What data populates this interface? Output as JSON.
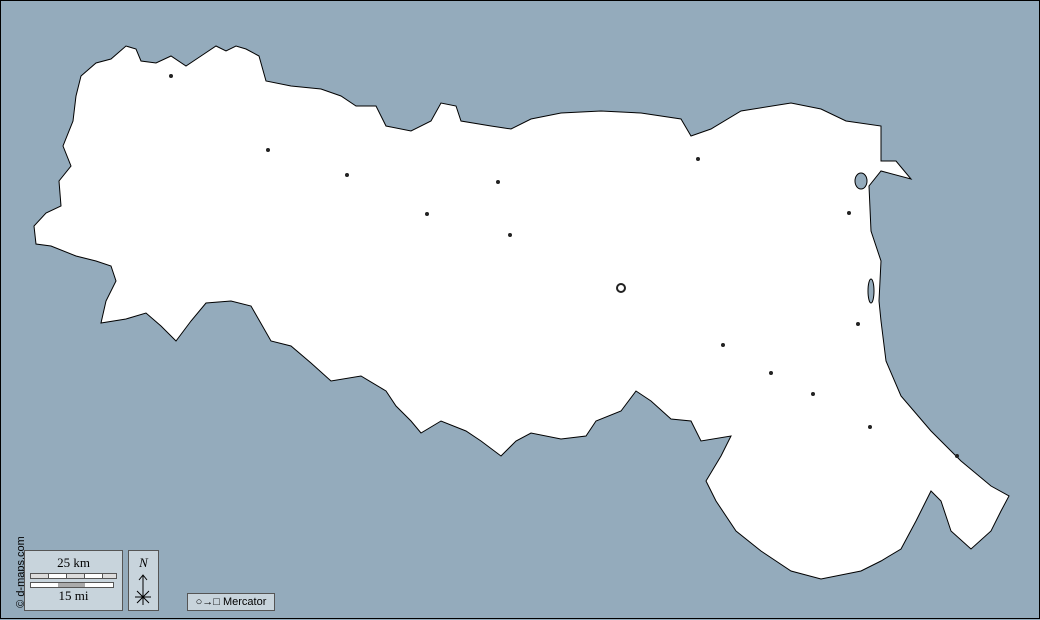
{
  "credit": "© d-maps.com",
  "scale": {
    "km_label": "25 km",
    "mi_label": "15 mi"
  },
  "north": {
    "label": "N"
  },
  "projection": {
    "label": "○→□ Mercator"
  },
  "colors": {
    "sea": "#94abbc",
    "land": "#ffffff",
    "legend_bg": "#c8d4dc"
  }
}
